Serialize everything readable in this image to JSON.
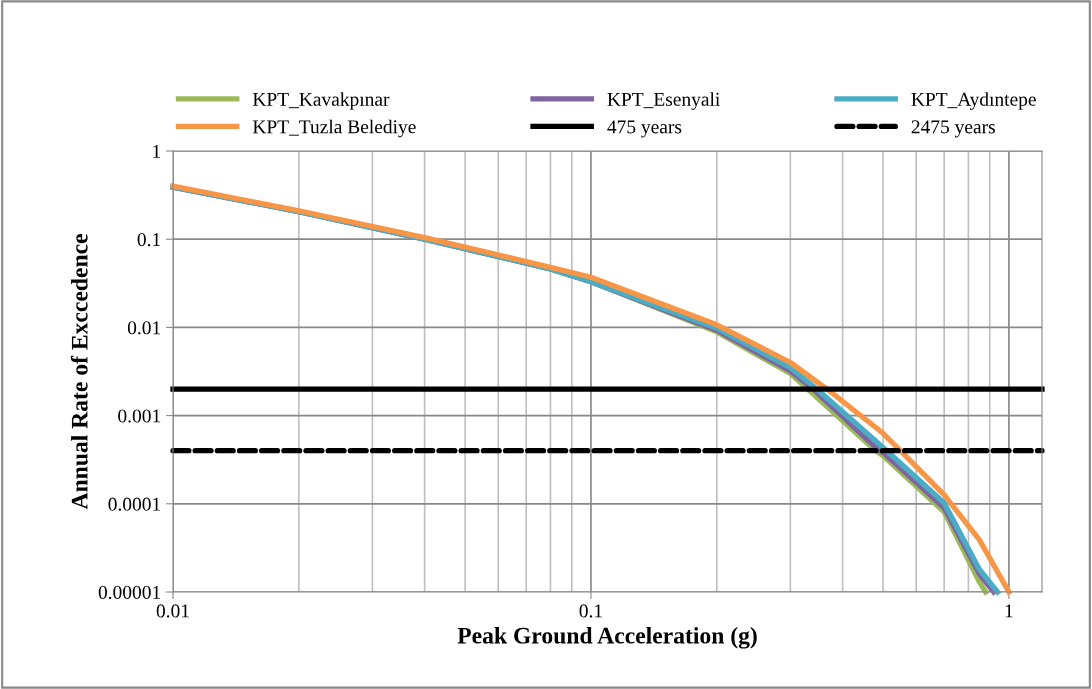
{
  "chart_data": {
    "type": "line",
    "xlabel": "Peak Ground Acceleration (g)",
    "ylabel": "Annual Rate of Exccedence",
    "log": "xy",
    "grid": true,
    "legend": "top",
    "line_style": "solid",
    "marker": "none",
    "xlim": [
      0.01,
      1.2
    ],
    "xticks": [
      {
        "value": 0.01,
        "label": "0.01"
      },
      {
        "value": 0.1,
        "label": "0.1"
      },
      1
    ],
    "ylim": [
      1e-05,
      1
    ],
    "yticks": [
      {
        "value": 1e-05,
        "label": "0.00001"
      },
      {
        "value": 0.0001,
        "label": "0.0001"
      },
      {
        "value": 0.001,
        "label": "0.001"
      },
      {
        "value": 0.01,
        "label": "0.01"
      },
      {
        "value": 0.1,
        "label": "0.1"
      },
      1
    ],
    "series": [
      {
        "name": "KPT_Kavakpınar",
        "color": "#9bbb59",
        "x": [
          0.01,
          0.02,
          0.04,
          0.08,
          0.1,
          0.2,
          0.3,
          0.33,
          0.48,
          0.5,
          0.7,
          0.85,
          0.88
        ],
        "values": [
          0.39,
          0.205,
          0.1,
          0.046,
          0.033,
          0.0089,
          0.003,
          0.002,
          0.0004,
          0.00035,
          8.1e-05,
          1.3e-05,
          1e-05
        ]
      },
      {
        "name": "KPT_Esenyali",
        "color": "#8064a2",
        "x": [
          0.01,
          0.02,
          0.04,
          0.08,
          0.1,
          0.2,
          0.3,
          0.34,
          0.49,
          0.5,
          0.7,
          0.85,
          0.92
        ],
        "values": [
          0.39,
          0.205,
          0.1,
          0.046,
          0.033,
          0.0093,
          0.0032,
          0.002,
          0.0004,
          0.00038,
          9e-05,
          1.6e-05,
          1e-05
        ]
      },
      {
        "name": "KPT_Aydıntepe",
        "color": "#4bacc6",
        "x": [
          0.01,
          0.02,
          0.04,
          0.08,
          0.1,
          0.2,
          0.3,
          0.347,
          0.51,
          0.7,
          0.85,
          0.94
        ],
        "values": [
          0.39,
          0.205,
          0.1,
          0.046,
          0.033,
          0.0098,
          0.0035,
          0.002,
          0.0004,
          0.000102,
          1.8e-05,
          1e-05
        ]
      },
      {
        "name": "KPT_Tuzla Belediye",
        "color": "#f79646",
        "x": [
          0.01,
          0.02,
          0.04,
          0.08,
          0.1,
          0.2,
          0.3,
          0.367,
          0.5,
          0.55,
          0.7,
          0.85,
          1.0
        ],
        "values": [
          0.4,
          0.21,
          0.104,
          0.048,
          0.037,
          0.0107,
          0.004,
          0.002,
          0.00063,
          0.0004,
          0.000126,
          3.9e-05,
          1e-05
        ]
      },
      {
        "name": "475 years",
        "color": "#000000",
        "x": [
          0.01,
          1.2
        ],
        "values": [
          0.002,
          0.002
        ]
      },
      {
        "name": "2475 years",
        "color": "#000000",
        "line_style": "dashed",
        "x": [
          0.01,
          1.2
        ],
        "values": [
          0.0004,
          0.0004
        ]
      }
    ]
  }
}
